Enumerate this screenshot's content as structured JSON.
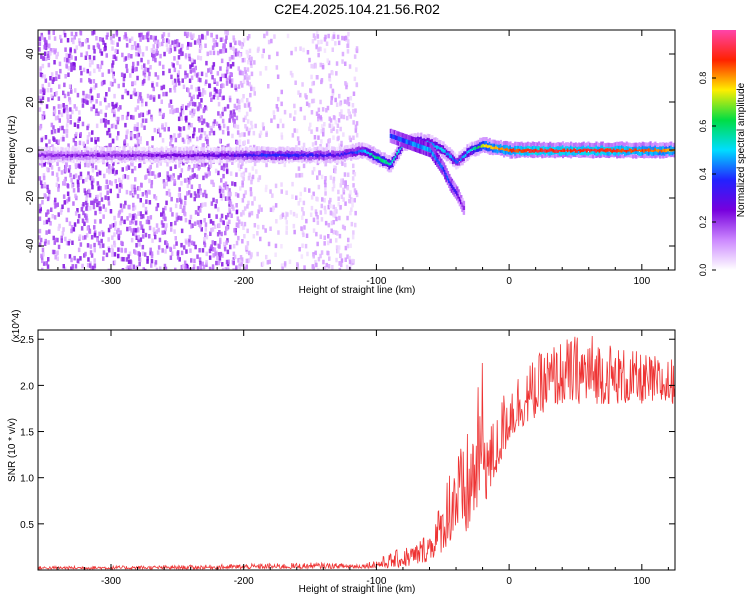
{
  "title": "C2E4.2025.104.21.56.R02",
  "colors": {
    "line": "#ee3333",
    "colorbar_stops": [
      "#ffffff",
      "#cc88ff",
      "#7700dd",
      "#2222ff",
      "#00ddff",
      "#00dd44",
      "#ffee00",
      "#ff2200",
      "#ff44aa"
    ]
  },
  "chart_data": [
    {
      "type": "heatmap",
      "title": "C2E4.2025.104.21.56.R02",
      "xlabel": "Height of straight line (km)",
      "ylabel": "Frequency (Hz)",
      "xlim": [
        -355,
        125
      ],
      "ylim": [
        -50,
        50
      ],
      "xticks": [
        -300,
        -200,
        -100,
        0,
        100
      ],
      "yticks": [
        -40,
        -20,
        0,
        20,
        40
      ],
      "colorbar": {
        "label": "Normalized spectral amplitude",
        "range": [
          0,
          1
        ],
        "ticks": [
          0.0,
          0.2,
          0.4,
          0.6,
          0.8
        ]
      },
      "ridge": {
        "x": [
          -355,
          -300,
          -250,
          -210,
          -180,
          -150,
          -130,
          -110,
          -100,
          -90,
          -80,
          -70,
          -60,
          -50,
          -40,
          -30,
          -20,
          0,
          20,
          60,
          100,
          125
        ],
        "freq": [
          -2,
          -2,
          -2,
          -2,
          -2,
          -2,
          -2,
          0,
          -3,
          -6,
          3,
          4,
          3,
          0,
          -5,
          0,
          2,
          0,
          0,
          0,
          0,
          0
        ],
        "amplitude": [
          0.22,
          0.22,
          0.24,
          0.28,
          0.38,
          0.35,
          0.3,
          0.45,
          0.6,
          0.55,
          0.5,
          0.55,
          0.45,
          0.5,
          0.4,
          0.5,
          0.75,
          0.85,
          0.9,
          0.9,
          0.85,
          0.8
        ]
      },
      "secondary_branch": {
        "x": [
          -90,
          -80,
          -70,
          -60,
          -50,
          -45,
          -40,
          -35
        ],
        "freq": [
          6,
          4,
          2,
          0,
          -8,
          -14,
          -18,
          -24
        ],
        "amplitude": [
          0.35,
          0.4,
          0.45,
          0.45,
          0.4,
          0.35,
          0.3,
          0.22
        ]
      }
    },
    {
      "type": "line",
      "xlabel": "Height of straight line (km)",
      "ylabel": "SNR (10 * v/v)",
      "y_multiplier": "(x10^4)",
      "xlim": [
        -355,
        125
      ],
      "ylim": [
        0,
        2.6
      ],
      "xticks": [
        -300,
        -200,
        -100,
        0,
        100
      ],
      "yticks": [
        0.5,
        1.0,
        1.5,
        2.0,
        2.5
      ],
      "envelope": {
        "x": [
          -355,
          -250,
          -150,
          -110,
          -95,
          -80,
          -70,
          -60,
          -50,
          -45,
          -40,
          -35,
          -30,
          -25,
          -20,
          -15,
          -10,
          -5,
          0,
          10,
          20,
          30,
          40,
          60,
          80,
          100,
          125
        ],
        "low": [
          0.01,
          0.01,
          0.015,
          0.02,
          0.02,
          0.03,
          0.05,
          0.1,
          0.2,
          0.3,
          0.35,
          0.3,
          0.4,
          0.6,
          0.7,
          0.8,
          1.0,
          1.2,
          1.4,
          1.55,
          1.65,
          1.75,
          1.8,
          1.8,
          1.8,
          1.8,
          1.8
        ],
        "high": [
          0.04,
          0.05,
          0.08,
          0.07,
          0.15,
          0.25,
          0.3,
          0.45,
          0.8,
          1.2,
          1.5,
          1.3,
          1.6,
          1.8,
          2.35,
          1.6,
          1.65,
          1.9,
          2.1,
          2.2,
          2.3,
          2.45,
          2.5,
          2.6,
          2.45,
          2.35,
          2.3
        ]
      }
    }
  ]
}
